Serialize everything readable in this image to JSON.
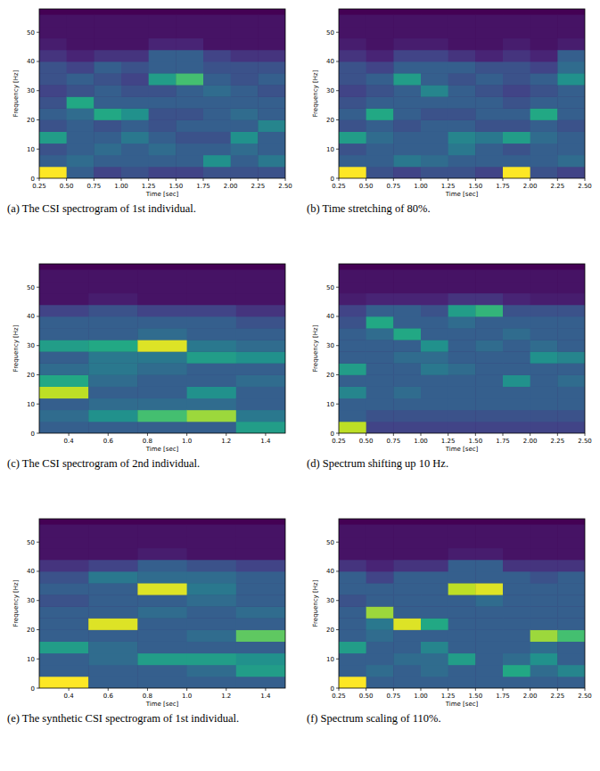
{
  "chart_data": [
    {
      "type": "heatmap",
      "title": "(a) The CSI spectrogram of 1st individual.",
      "xlabel": "Time [sec]",
      "ylabel": "Frequency [Hz]",
      "xlim": [
        0.25,
        2.5
      ],
      "ylim": [
        0,
        58
      ],
      "xticks": [
        0.25,
        {
          "value": 0.5,
          "label": "0.50"
        },
        0.75,
        {
          "value": 1,
          "label": "1.00"
        },
        1.25,
        {
          "value": 1.5,
          "label": "1.50"
        },
        1.75,
        {
          "value": 2,
          "label": "2.00"
        },
        2.25,
        {
          "value": 2.5,
          "label": "2.50"
        }
      ],
      "yticks": [
        0,
        10,
        20,
        30,
        40,
        50
      ],
      "time_edges": [
        0.25,
        0.5,
        0.75,
        1.0,
        1.25,
        1.5,
        1.75,
        2.0,
        2.25,
        2.5
      ],
      "freq_edges": [
        0,
        4,
        8,
        12,
        16,
        20,
        24,
        28,
        32,
        36,
        40,
        44,
        48,
        52,
        56
      ],
      "vlim": [
        0,
        1
      ],
      "cells": [
        [
          1.0,
          0.3,
          0.25,
          0.55,
          0.25,
          0.3,
          0.25,
          0.2,
          0.25,
          0.25,
          0.15,
          0.08,
          0.05,
          0.05
        ],
        [
          0.3,
          0.35,
          0.3,
          0.3,
          0.3,
          0.35,
          0.6,
          0.25,
          0.3,
          0.2,
          0.1,
          0.05,
          0.05,
          0.05
        ],
        [
          0.2,
          0.3,
          0.35,
          0.3,
          0.25,
          0.6,
          0.3,
          0.3,
          0.25,
          0.3,
          0.15,
          0.05,
          0.05,
          0.05
        ],
        [
          0.25,
          0.3,
          0.3,
          0.4,
          0.3,
          0.5,
          0.3,
          0.25,
          0.2,
          0.25,
          0.15,
          0.05,
          0.05,
          0.05
        ],
        [
          0.2,
          0.3,
          0.35,
          0.3,
          0.25,
          0.25,
          0.3,
          0.25,
          0.55,
          0.3,
          0.3,
          0.1,
          0.05,
          0.05
        ],
        [
          0.2,
          0.3,
          0.3,
          0.25,
          0.3,
          0.25,
          0.3,
          0.3,
          0.7,
          0.3,
          0.3,
          0.1,
          0.05,
          0.05
        ],
        [
          0.25,
          0.5,
          0.3,
          0.25,
          0.3,
          0.3,
          0.3,
          0.35,
          0.3,
          0.25,
          0.2,
          0.05,
          0.05,
          0.05
        ],
        [
          0.25,
          0.3,
          0.35,
          0.5,
          0.3,
          0.35,
          0.3,
          0.3,
          0.25,
          0.25,
          0.15,
          0.05,
          0.05,
          0.05
        ],
        [
          0.25,
          0.4,
          0.3,
          0.3,
          0.45,
          0.3,
          0.3,
          0.25,
          0.3,
          0.25,
          0.15,
          0.05,
          0.05,
          0.05
        ]
      ]
    },
    {
      "type": "heatmap",
      "title": "(b) Time stretching of 80%.",
      "xlabel": "Time [sec]",
      "ylabel": "Frequency [Hz]",
      "xlim": [
        0.25,
        2.5
      ],
      "ylim": [
        0,
        58
      ],
      "xticks": [
        0.25,
        {
          "value": 0.5,
          "label": "0.50"
        },
        0.75,
        {
          "value": 1,
          "label": "1.00"
        },
        1.25,
        {
          "value": 1.5,
          "label": "1.50"
        },
        1.75,
        {
          "value": 2,
          "label": "2.00"
        },
        2.25,
        {
          "value": 2.5,
          "label": "2.50"
        }
      ],
      "yticks": [
        0,
        10,
        20,
        30,
        40,
        50
      ],
      "time_edges": [
        0.25,
        0.5,
        0.75,
        1.0,
        1.25,
        1.5,
        1.75,
        2.0,
        2.25,
        2.5
      ],
      "freq_edges": [
        0,
        4,
        8,
        12,
        16,
        20,
        24,
        28,
        32,
        36,
        40,
        44,
        48,
        52,
        56
      ],
      "vlim": [
        0,
        1
      ],
      "cells": [
        [
          1.0,
          0.3,
          0.25,
          0.55,
          0.25,
          0.3,
          0.25,
          0.2,
          0.25,
          0.25,
          0.15,
          0.08,
          0.05,
          0.05
        ],
        [
          0.25,
          0.3,
          0.3,
          0.35,
          0.3,
          0.6,
          0.3,
          0.25,
          0.3,
          0.2,
          0.1,
          0.05,
          0.05,
          0.05
        ],
        [
          0.2,
          0.4,
          0.3,
          0.3,
          0.25,
          0.3,
          0.3,
          0.3,
          0.55,
          0.3,
          0.2,
          0.08,
          0.05,
          0.05
        ],
        [
          0.25,
          0.35,
          0.3,
          0.3,
          0.3,
          0.25,
          0.3,
          0.45,
          0.3,
          0.3,
          0.2,
          0.08,
          0.05,
          0.05
        ],
        [
          0.25,
          0.3,
          0.4,
          0.45,
          0.3,
          0.25,
          0.3,
          0.3,
          0.25,
          0.3,
          0.15,
          0.05,
          0.05,
          0.05
        ],
        [
          0.2,
          0.3,
          0.3,
          0.4,
          0.25,
          0.3,
          0.3,
          0.25,
          0.3,
          0.25,
          0.1,
          0.05,
          0.05,
          0.05
        ],
        [
          1.0,
          0.3,
          0.25,
          0.55,
          0.25,
          0.3,
          0.25,
          0.2,
          0.25,
          0.25,
          0.15,
          0.08,
          0.05,
          0.05
        ],
        [
          0.25,
          0.3,
          0.3,
          0.35,
          0.3,
          0.6,
          0.3,
          0.25,
          0.3,
          0.2,
          0.1,
          0.05,
          0.05,
          0.05
        ],
        [
          0.2,
          0.35,
          0.3,
          0.3,
          0.25,
          0.3,
          0.3,
          0.3,
          0.5,
          0.35,
          0.3,
          0.08,
          0.05,
          0.05
        ]
      ]
    },
    {
      "type": "heatmap",
      "title": "(c) The CSI spectrogram of 2nd individual.",
      "xlabel": "Time [sec]",
      "ylabel": "Frequency [Hz]",
      "xlim": [
        0.25,
        1.5
      ],
      "ylim": [
        0,
        58
      ],
      "xticks": [
        0.4,
        0.6,
        0.8,
        {
          "value": 1,
          "label": "1.0"
        },
        1.2,
        1.4
      ],
      "yticks": [
        0,
        10,
        20,
        30,
        40,
        50
      ],
      "time_edges": [
        0.25,
        0.5,
        0.75,
        1.0,
        1.25,
        1.5
      ],
      "freq_edges": [
        0,
        4,
        8,
        12,
        16,
        20,
        24,
        28,
        32,
        36,
        40,
        44,
        48,
        52,
        56
      ],
      "vlim": [
        0,
        1
      ],
      "cells": [
        [
          0.3,
          0.35,
          0.3,
          0.9,
          0.6,
          0.35,
          0.3,
          0.55,
          0.3,
          0.3,
          0.2,
          0.05,
          0.05,
          0.05
        ],
        [
          0.3,
          0.5,
          0.35,
          0.3,
          0.35,
          0.4,
          0.4,
          0.6,
          0.3,
          0.3,
          0.25,
          0.08,
          0.05,
          0.05
        ],
        [
          0.3,
          0.7,
          0.35,
          0.3,
          0.3,
          0.35,
          0.4,
          0.95,
          0.35,
          0.3,
          0.2,
          0.05,
          0.05,
          0.05
        ],
        [
          0.3,
          0.85,
          0.35,
          0.5,
          0.3,
          0.3,
          0.55,
          0.4,
          0.3,
          0.3,
          0.2,
          0.05,
          0.05,
          0.05
        ],
        [
          0.55,
          0.4,
          0.3,
          0.3,
          0.35,
          0.3,
          0.5,
          0.35,
          0.3,
          0.25,
          0.15,
          0.05,
          0.05,
          0.05
        ]
      ]
    },
    {
      "type": "heatmap",
      "title": "(d) Spectrum shifting up 10 Hz.",
      "xlabel": "Time [sec]",
      "ylabel": "Frequency [Hz]",
      "xlim": [
        0.25,
        2.5
      ],
      "ylim": [
        0,
        58
      ],
      "xticks": [
        0.25,
        {
          "value": 0.5,
          "label": "0.50"
        },
        0.75,
        {
          "value": 1,
          "label": "1.00"
        },
        1.25,
        {
          "value": 1.5,
          "label": "1.50"
        },
        1.75,
        {
          "value": 2,
          "label": "2.00"
        },
        2.25,
        {
          "value": 2.5,
          "label": "2.50"
        }
      ],
      "yticks": [
        0,
        10,
        20,
        30,
        40,
        50
      ],
      "time_edges": [
        0.25,
        0.5,
        0.75,
        1.0,
        1.25,
        1.5,
        1.75,
        2.0,
        2.25,
        2.5
      ],
      "freq_edges": [
        0,
        4,
        8,
        12,
        16,
        20,
        24,
        28,
        32,
        36,
        40,
        44,
        48,
        52,
        56
      ],
      "vlim": [
        0,
        1
      ],
      "cells": [
        [
          0.9,
          0.3,
          0.3,
          0.45,
          0.3,
          0.55,
          0.3,
          0.3,
          0.3,
          0.25,
          0.2,
          0.08,
          0.05,
          0.05
        ],
        [
          0.2,
          0.25,
          0.3,
          0.3,
          0.3,
          0.3,
          0.3,
          0.3,
          0.35,
          0.6,
          0.3,
          0.1,
          0.05,
          0.05
        ],
        [
          0.2,
          0.25,
          0.3,
          0.35,
          0.3,
          0.3,
          0.35,
          0.3,
          0.6,
          0.3,
          0.3,
          0.1,
          0.05,
          0.05
        ],
        [
          0.2,
          0.25,
          0.3,
          0.3,
          0.3,
          0.4,
          0.35,
          0.5,
          0.3,
          0.3,
          0.25,
          0.1,
          0.05,
          0.05
        ],
        [
          0.2,
          0.25,
          0.3,
          0.3,
          0.3,
          0.35,
          0.3,
          0.3,
          0.3,
          0.35,
          0.55,
          0.15,
          0.05,
          0.05
        ],
        [
          0.2,
          0.25,
          0.3,
          0.3,
          0.3,
          0.3,
          0.3,
          0.35,
          0.3,
          0.3,
          0.65,
          0.15,
          0.05,
          0.05
        ],
        [
          0.2,
          0.25,
          0.3,
          0.3,
          0.5,
          0.3,
          0.3,
          0.3,
          0.35,
          0.3,
          0.25,
          0.1,
          0.05,
          0.05
        ],
        [
          0.2,
          0.25,
          0.3,
          0.3,
          0.3,
          0.3,
          0.5,
          0.35,
          0.3,
          0.3,
          0.25,
          0.08,
          0.05,
          0.05
        ],
        [
          0.2,
          0.25,
          0.3,
          0.3,
          0.35,
          0.3,
          0.45,
          0.3,
          0.3,
          0.3,
          0.25,
          0.08,
          0.05,
          0.05
        ]
      ]
    },
    {
      "type": "heatmap",
      "title": "(e) The synthetic CSI spectrogram of 1st individual.",
      "xlabel": "Time [sec]",
      "ylabel": "Frequency [Hz]",
      "xlim": [
        0.25,
        1.5
      ],
      "ylim": [
        0,
        58
      ],
      "xticks": [
        0.4,
        0.6,
        0.8,
        {
          "value": 1,
          "label": "1.0"
        },
        1.2,
        1.4
      ],
      "yticks": [
        0,
        10,
        20,
        30,
        40,
        50
      ],
      "time_edges": [
        0.25,
        0.5,
        0.75,
        1.0,
        1.25,
        1.5
      ],
      "freq_edges": [
        0,
        4,
        8,
        12,
        16,
        20,
        24,
        28,
        32,
        36,
        40,
        44,
        48,
        52,
        56
      ],
      "vlim": [
        0,
        1
      ],
      "cells": [
        [
          1.0,
          0.3,
          0.3,
          0.55,
          0.3,
          0.3,
          0.3,
          0.25,
          0.3,
          0.25,
          0.15,
          0.05,
          0.05,
          0.05
        ],
        [
          0.3,
          0.3,
          0.35,
          0.35,
          0.3,
          0.95,
          0.3,
          0.3,
          0.3,
          0.4,
          0.2,
          0.05,
          0.05,
          0.05
        ],
        [
          0.3,
          0.3,
          0.55,
          0.3,
          0.3,
          0.3,
          0.35,
          0.3,
          0.95,
          0.35,
          0.3,
          0.08,
          0.05,
          0.05
        ],
        [
          0.3,
          0.35,
          0.55,
          0.3,
          0.35,
          0.3,
          0.3,
          0.35,
          0.4,
          0.35,
          0.25,
          0.05,
          0.05,
          0.05
        ],
        [
          0.3,
          0.55,
          0.5,
          0.3,
          0.75,
          0.3,
          0.35,
          0.3,
          0.3,
          0.3,
          0.2,
          0.05,
          0.05,
          0.05
        ]
      ]
    },
    {
      "type": "heatmap",
      "title": "(f) Spectrum scaling of 110%.",
      "xlabel": "Time [sec]",
      "ylabel": "Frequency [Hz]",
      "xlim": [
        0.25,
        2.5
      ],
      "ylim": [
        0,
        58
      ],
      "xticks": [
        0.25,
        {
          "value": 0.5,
          "label": "0.50"
        },
        0.75,
        {
          "value": 1,
          "label": "1.00"
        },
        1.25,
        {
          "value": 1.5,
          "label": "1.50"
        },
        1.75,
        {
          "value": 2,
          "label": "2.00"
        },
        2.25,
        {
          "value": 2.5,
          "label": "2.50"
        }
      ],
      "yticks": [
        0,
        10,
        20,
        30,
        40,
        50
      ],
      "time_edges": [
        0.25,
        0.5,
        0.75,
        1.0,
        1.25,
        1.5,
        1.75,
        2.0,
        2.25,
        2.5
      ],
      "freq_edges": [
        0,
        4,
        8,
        12,
        16,
        20,
        24,
        28,
        32,
        36,
        40,
        44,
        48,
        52,
        56
      ],
      "vlim": [
        0,
        1
      ],
      "cells": [
        [
          1.0,
          0.3,
          0.3,
          0.55,
          0.3,
          0.3,
          0.3,
          0.25,
          0.3,
          0.3,
          0.15,
          0.05,
          0.05,
          0.05
        ],
        [
          0.3,
          0.35,
          0.3,
          0.3,
          0.35,
          0.4,
          0.85,
          0.3,
          0.3,
          0.2,
          0.1,
          0.05,
          0.05,
          0.05
        ],
        [
          0.3,
          0.3,
          0.35,
          0.3,
          0.3,
          0.95,
          0.3,
          0.3,
          0.3,
          0.3,
          0.15,
          0.05,
          0.05,
          0.05
        ],
        [
          0.3,
          0.35,
          0.35,
          0.45,
          0.3,
          0.6,
          0.3,
          0.3,
          0.3,
          0.3,
          0.15,
          0.05,
          0.05,
          0.05
        ],
        [
          0.3,
          0.3,
          0.55,
          0.3,
          0.3,
          0.3,
          0.3,
          0.3,
          0.9,
          0.3,
          0.3,
          0.08,
          0.05,
          0.05
        ],
        [
          0.3,
          0.3,
          0.3,
          0.3,
          0.3,
          0.3,
          0.3,
          0.35,
          0.95,
          0.3,
          0.3,
          0.08,
          0.05,
          0.05
        ],
        [
          0.3,
          0.6,
          0.35,
          0.3,
          0.3,
          0.3,
          0.3,
          0.3,
          0.3,
          0.3,
          0.15,
          0.05,
          0.05,
          0.05
        ],
        [
          0.3,
          0.35,
          0.5,
          0.35,
          0.85,
          0.3,
          0.3,
          0.3,
          0.3,
          0.25,
          0.15,
          0.05,
          0.05,
          0.05
        ],
        [
          0.3,
          0.45,
          0.3,
          0.3,
          0.7,
          0.3,
          0.3,
          0.3,
          0.3,
          0.3,
          0.15,
          0.05,
          0.05,
          0.05
        ]
      ]
    }
  ]
}
